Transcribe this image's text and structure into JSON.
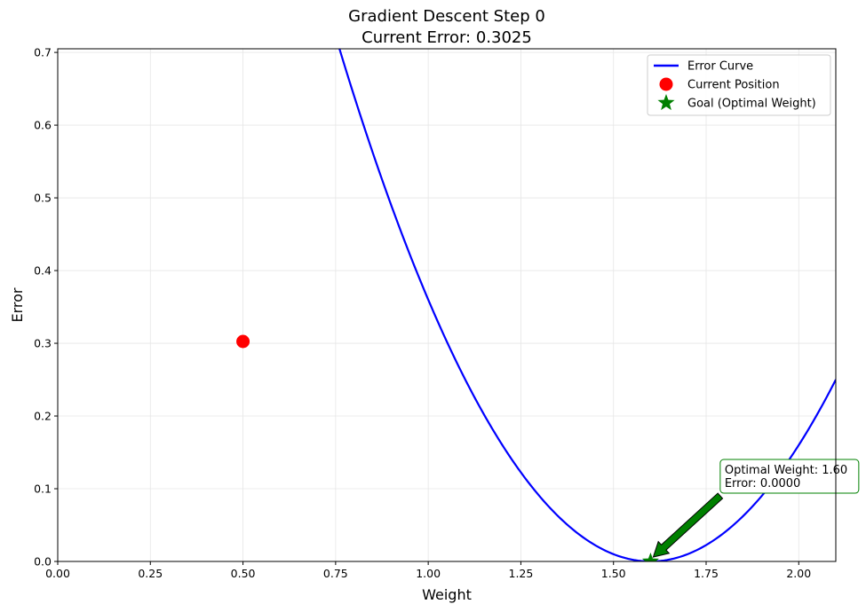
{
  "chart_data": {
    "type": "line",
    "title_line1": "Gradient Descent Step 0",
    "title_line2": "Current Error: 0.3025",
    "xlabel": "Weight",
    "ylabel": "Error",
    "xlim": [
      0,
      2.1
    ],
    "ylim": [
      0,
      0.705
    ],
    "xticks": [
      0,
      0.25,
      0.5,
      0.75,
      1.0,
      1.25,
      1.5,
      1.75,
      2.0
    ],
    "xtick_labels": [
      "0.00",
      "0.25",
      "0.50",
      "0.75",
      "1.00",
      "1.25",
      "1.50",
      "1.75",
      "2.00"
    ],
    "yticks": [
      0,
      0.1,
      0.2,
      0.3,
      0.4,
      0.5,
      0.6,
      0.7
    ],
    "ytick_labels": [
      "0.0",
      "0.1",
      "0.2",
      "0.3",
      "0.4",
      "0.5",
      "0.6",
      "0.7"
    ],
    "grid": true,
    "legend_position": "top-right",
    "curve": {
      "name": "Error Curve",
      "color": "#0000ff",
      "optimal_weight": 1.6
    },
    "current_position": {
      "name": "Current Position",
      "color": "#ff0000",
      "x": 0.5,
      "y": 0.3025
    },
    "goal": {
      "name": "Goal (Optimal Weight)",
      "color": "#008000",
      "x": 1.6,
      "y": 0.0
    },
    "annotation": {
      "line1": "Optimal Weight: 1.60",
      "line2": "Error: 0.0000",
      "text_x": 1.8,
      "text_y": 0.1,
      "border_color": "#008000",
      "arrow_color": "#008000"
    }
  }
}
